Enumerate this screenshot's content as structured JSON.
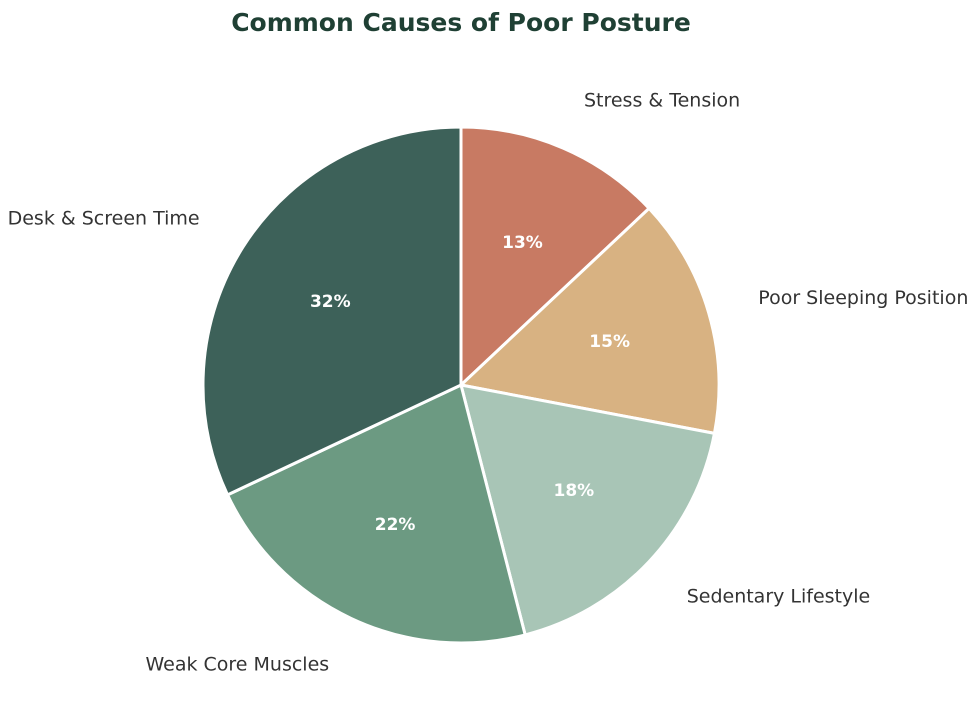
{
  "chart_data": {
    "type": "pie",
    "title": "Common Causes of Poor Posture",
    "categories": [
      "Stress & Tension",
      "Poor Sleeping Position",
      "Sedentary Lifestyle",
      "Weak Core Muscles",
      "Desk & Screen Time"
    ],
    "values": [
      13,
      15,
      18,
      22,
      32
    ],
    "value_labels": [
      "13%",
      "15%",
      "18%",
      "22%",
      "32%"
    ],
    "colors": [
      "#c87a63",
      "#d8b282",
      "#a8c5b6",
      "#6c9a82",
      "#3d6159"
    ],
    "start_angle": "12 o'clock, clockwise",
    "legend": "none (labels outside slices)"
  }
}
